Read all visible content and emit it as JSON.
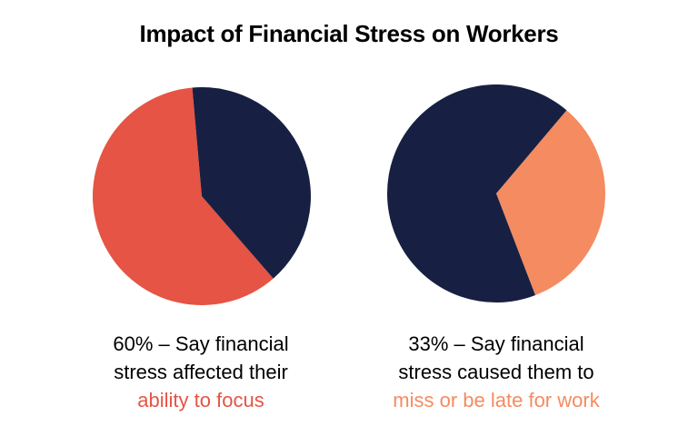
{
  "title": "Impact of Financial Stress on Workers",
  "colors": {
    "navy": "#172042",
    "coral": "#E55444",
    "orange": "#F58B60",
    "text": "#000000"
  },
  "chart_data": [
    {
      "type": "pie",
      "slices": [
        {
          "label": "ability to focus",
          "value": 60,
          "color": "#E55444"
        },
        {
          "label": "",
          "value": 40,
          "color": "#172042"
        }
      ],
      "caption": {
        "line1": "60% – Say financial",
        "line2": "stress affected their",
        "highlight": "ability to focus"
      }
    },
    {
      "type": "pie",
      "slices": [
        {
          "label": "miss or be late for work",
          "value": 33,
          "color": "#F58B60"
        },
        {
          "label": "",
          "value": 67,
          "color": "#172042"
        }
      ],
      "caption": {
        "line1": "33% – Say financial",
        "line2": "stress caused them to",
        "highlight": "miss or be late for work"
      }
    }
  ]
}
